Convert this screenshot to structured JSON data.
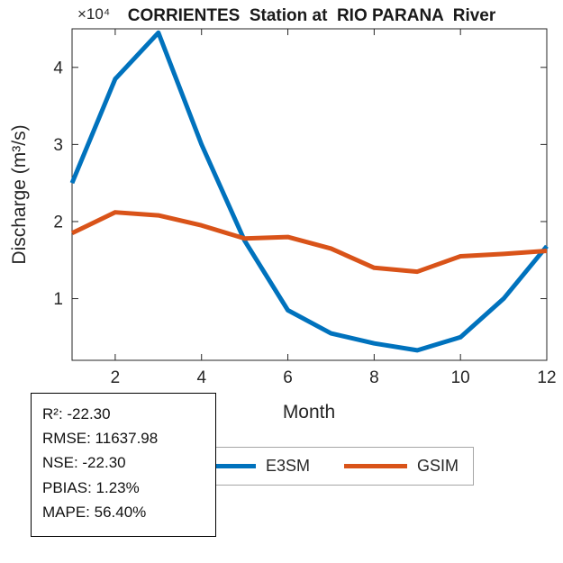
{
  "chart_data": {
    "type": "line",
    "title": "CORRIENTES  Station at  RIO PARANA  River",
    "multiplier": "×10⁴",
    "xlabel": "Month",
    "ylabel": "Discharge (m³/s)",
    "x": [
      1,
      2,
      3,
      4,
      5,
      6,
      7,
      8,
      9,
      10,
      11,
      12
    ],
    "series": [
      {
        "name": "E3SM",
        "color": "#0072BD",
        "values": [
          2.5,
          3.85,
          4.45,
          3.0,
          1.75,
          0.85,
          0.55,
          0.42,
          0.33,
          0.5,
          1.0,
          1.68
        ]
      },
      {
        "name": "GSIM",
        "color": "#D95319",
        "values": [
          1.85,
          2.12,
          2.08,
          1.95,
          1.78,
          1.8,
          1.65,
          1.4,
          1.35,
          1.55,
          1.58,
          1.62
        ]
      }
    ],
    "xticks": [
      2,
      4,
      6,
      8,
      10,
      12
    ],
    "yticks": [
      1,
      2,
      3,
      4
    ],
    "xlim": [
      1,
      12
    ],
    "ylim": [
      0.2,
      4.5
    ],
    "grid": false,
    "legend_position": "below"
  },
  "stats": {
    "lines": [
      "R²: -22.30",
      "RMSE: 11637.98",
      "NSE: -22.30",
      "PBIAS: 1.23%",
      "MAPE: 56.40%"
    ]
  }
}
